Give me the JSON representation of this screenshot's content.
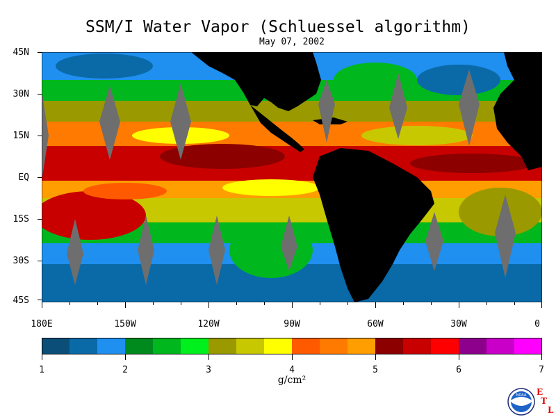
{
  "title": "SSM/I Water Vapor (Schluessel algorithm)",
  "date": "May 07, 2002",
  "lat_labels": [
    "45N",
    "30N",
    "15N",
    "EQ",
    "15S",
    "30S",
    "45S"
  ],
  "lon_labels": [
    "180E",
    "150W",
    "120W",
    "90W",
    "60W",
    "30W",
    "0"
  ],
  "colorbar": {
    "colors": [
      "#0b4f78",
      "#0a6aa8",
      "#1f8ff0",
      "#008a1e",
      "#00b81e",
      "#00f01e",
      "#9a9a00",
      "#c8c800",
      "#ffff00",
      "#ff5a00",
      "#ff7a00",
      "#ff9e00",
      "#8c0000",
      "#c80000",
      "#ff0000",
      "#8c008c",
      "#c800c8",
      "#ff00ff"
    ],
    "tick_labels": [
      "1",
      "2",
      "3",
      "4",
      "5",
      "6",
      "7"
    ],
    "range": [
      1,
      7
    ],
    "unit": "g/cm²"
  },
  "palette": {
    "land": "#000000",
    "no_data": "#6e6e6e"
  },
  "logo": {
    "icon": "noaa-logo-icon",
    "text": "NOAA"
  },
  "etl": {
    "e": "E",
    "t": "T",
    "l": "L"
  }
}
